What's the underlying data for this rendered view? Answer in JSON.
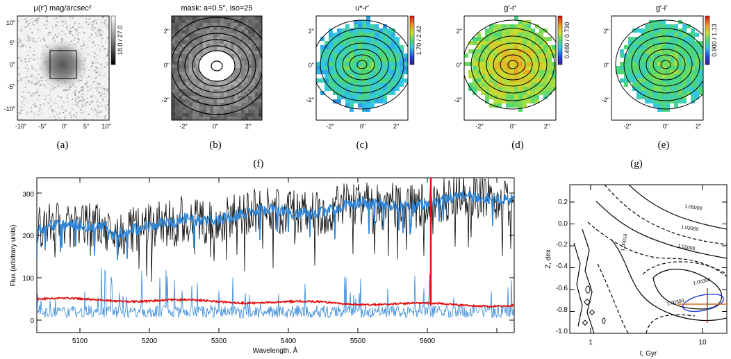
{
  "panels": [
    {
      "id": "a",
      "title": "μ(r′) mag/arcsec²",
      "colorbar": "18.0 / 27.0",
      "caption": "(a)",
      "yticks": [
        "10\"",
        "5\"",
        "0\"",
        "-5\"",
        "-10\""
      ],
      "xticks": [
        "-10\"",
        "-5\"",
        "0\"",
        "5\"",
        "10\""
      ]
    },
    {
      "id": "b",
      "title": "mask: a=0.5\", iso=25",
      "caption": "(b)",
      "yticks": [
        "2\"",
        "0\"",
        "-2\""
      ],
      "xticks": [
        "-2\"",
        "0\"",
        "2\""
      ]
    },
    {
      "id": "c",
      "title": "u*-r′",
      "colorbar": "1.70 / 2.42",
      "caption": "(c)",
      "yticks": [
        "2\"",
        "0\"",
        "-2\""
      ],
      "xticks": [
        "-2\"",
        "0\"",
        "2\""
      ]
    },
    {
      "id": "d",
      "title": "g′-r′",
      "colorbar": "0.460 / 0.730",
      "caption": "(d)",
      "yticks": [
        "2\"",
        "0\"",
        "-2\""
      ],
      "xticks": [
        "-2\"",
        "0\"",
        "2\""
      ]
    },
    {
      "id": "e",
      "title": "g′-i′",
      "colorbar": "0.900 / 1.13",
      "caption": "(e)",
      "yticks": [
        "2\"",
        "0\"",
        "-2\""
      ],
      "xticks": [
        "-2\"",
        "0\"",
        "2\""
      ]
    }
  ],
  "captions": {
    "f": "(f)",
    "g": "(g)"
  },
  "spectrum": {
    "xlabel": "Wavelength, Å",
    "ylabel": "Flux (arbitrary units)",
    "xticks": [
      "5100",
      "5200",
      "5300",
      "5400",
      "5500",
      "5600"
    ],
    "yticks": [
      "0",
      "100",
      "200",
      "300"
    ],
    "colors": {
      "observed": "#000000",
      "model": "#2f86d8",
      "residual": "#2f86d8",
      "error": "#e01010"
    }
  },
  "chi2": {
    "xlabel": "t, Gyr",
    "ylabel": "Z, dex",
    "xticks": [
      "1",
      "10"
    ],
    "yticks": [
      "0.2",
      "0.0",
      "-0.2",
      "-0.4",
      "-0.6",
      "-0.8",
      "-1.0"
    ],
    "contour_labels": [
      "1.05000",
      "1.03000",
      "1.01000",
      "1.00300",
      "1.00300",
      "1.00010"
    ]
  }
}
